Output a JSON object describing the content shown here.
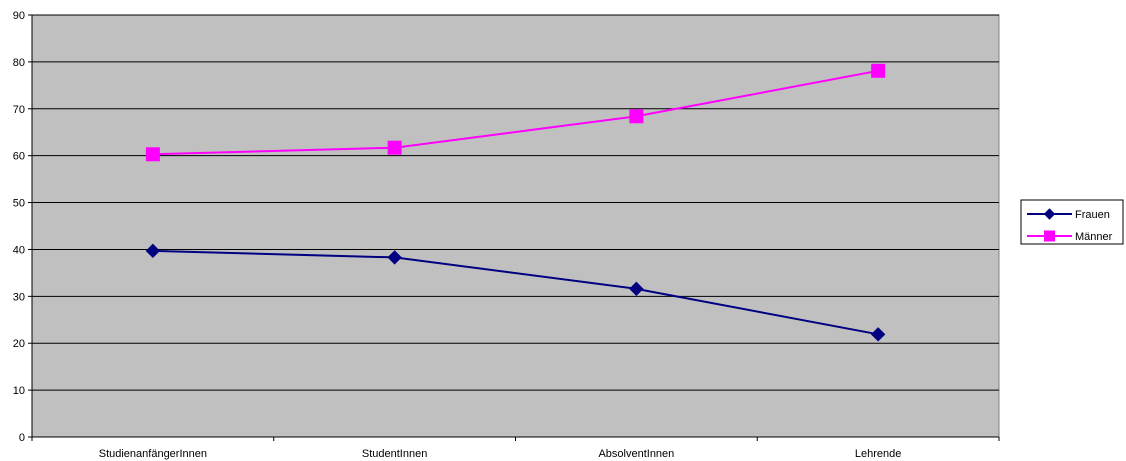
{
  "chart_data": {
    "type": "line",
    "title": "",
    "xlabel": "",
    "ylabel": "",
    "categories": [
      "StudienanfängerInnen",
      "StudentInnen",
      "AbsolventInnen",
      "Lehrende"
    ],
    "ylim": [
      0,
      90
    ],
    "yticks": [
      0,
      10,
      20,
      30,
      40,
      50,
      60,
      70,
      80,
      90
    ],
    "grid": true,
    "legend_position": "right",
    "series": [
      {
        "name": "Frauen",
        "values": [
          39.7,
          38.3,
          31.6,
          21.9
        ],
        "color": "#000080",
        "marker": "diamond"
      },
      {
        "name": "Männer",
        "values": [
          60.3,
          61.7,
          68.4,
          78.1
        ],
        "color": "#FF00FF",
        "marker": "square"
      }
    ],
    "plot_background": "#C0C0C0",
    "gridline_color": "#000000"
  }
}
